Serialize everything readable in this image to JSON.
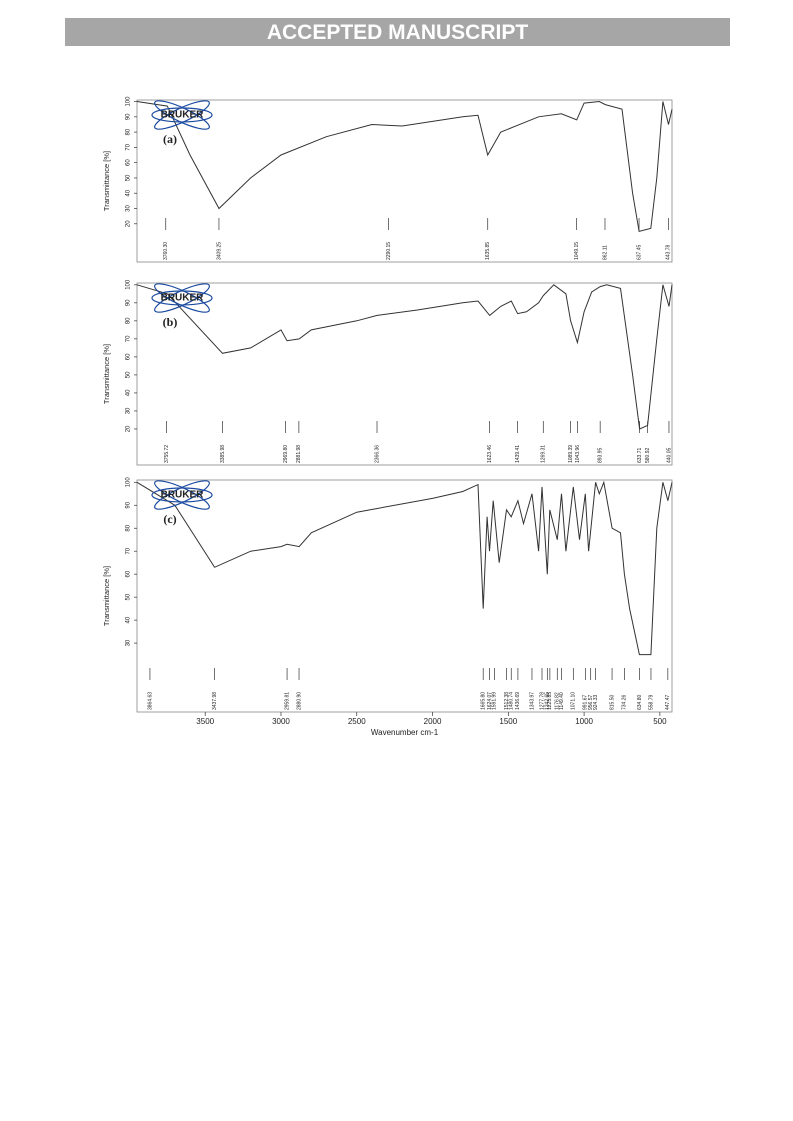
{
  "header": {
    "banner": "ACCEPTED MANUSCRIPT"
  },
  "chart_data": [
    {
      "type": "line",
      "label": "(a)",
      "logo": "BRUKER",
      "ylabel": "Transmittance [%]",
      "color": "#333333",
      "xlim": [
        3950,
        420
      ],
      "ylim": [
        -5,
        101
      ],
      "yticks": [
        20,
        30,
        40,
        50,
        60,
        70,
        80,
        90,
        100
      ],
      "x": [
        3950,
        3750,
        3600,
        3409,
        3200,
        3000,
        2700,
        2400,
        2200,
        1800,
        1700,
        1636,
        1550,
        1300,
        1150,
        1049,
        1000,
        900,
        860,
        750,
        680,
        637,
        560,
        520,
        480,
        443,
        420
      ],
      "values": [
        100,
        97,
        65,
        30,
        50,
        65,
        77,
        85,
        84,
        90,
        91,
        65,
        80,
        90,
        92,
        88,
        99,
        100,
        98,
        95,
        40,
        15,
        17,
        50,
        100,
        85,
        95
      ],
      "peaks": [
        {
          "value": 3760.3,
          "label": "3760.30"
        },
        {
          "value": 3409.25,
          "label": "3409.25"
        },
        {
          "value": 2290.15,
          "label": "2290.15"
        },
        {
          "value": 1635.85,
          "label": "1635.85"
        },
        {
          "value": 1049.15,
          "label": "1049.15"
        },
        {
          "value": 862.11,
          "label": "862.11"
        },
        {
          "value": 637.45,
          "label": "637.45"
        },
        {
          "value": 443.78,
          "label": "443.78"
        }
      ]
    },
    {
      "type": "line",
      "label": "(b)",
      "logo": "BRUKER",
      "ylabel": "Transmittance [%]",
      "color": "#333333",
      "xlim": [
        3950,
        420
      ],
      "ylim": [
        0,
        101
      ],
      "yticks": [
        20,
        30,
        40,
        50,
        60,
        70,
        80,
        90,
        100
      ],
      "x": [
        3950,
        3750,
        3386,
        3200,
        3000,
        2960,
        2880,
        2800,
        2500,
        2366,
        2100,
        1800,
        1700,
        1623,
        1550,
        1480,
        1439,
        1380,
        1300,
        1269,
        1200,
        1120,
        1089,
        1044,
        1000,
        950,
        894,
        850,
        760,
        680,
        634,
        581,
        520,
        480,
        440,
        420
      ],
      "values": [
        100,
        95,
        62,
        65,
        75,
        69,
        70,
        75,
        80,
        83,
        86,
        90,
        91,
        83,
        88,
        91,
        84,
        85,
        90,
        94,
        100,
        95,
        80,
        68,
        85,
        96,
        99,
        100,
        98,
        50,
        20,
        22,
        70,
        100,
        88,
        100
      ],
      "peaks": [
        {
          "value": 3755.72,
          "label": "3755.72"
        },
        {
          "value": 3385.98,
          "label": "3385.98"
        },
        {
          "value": 2969.8,
          "label": "2969.80"
        },
        {
          "value": 2881.98,
          "label": "2881.98"
        },
        {
          "value": 2366.36,
          "label": "2366.36"
        },
        {
          "value": 1623.46,
          "label": "1623.46"
        },
        {
          "value": 1439.41,
          "label": "1439.41"
        },
        {
          "value": 1269.31,
          "label": "1269.31"
        },
        {
          "value": 1089.39,
          "label": "1089.39"
        },
        {
          "value": 1043.96,
          "label": "1043.96"
        },
        {
          "value": 893.95,
          "label": "893.95"
        },
        {
          "value": 633.71,
          "label": "633.71"
        },
        {
          "value": 580.92,
          "label": "580.92"
        },
        {
          "value": 440.05,
          "label": "440.05"
        }
      ]
    },
    {
      "type": "line",
      "label": "(c)",
      "logo": "BRUKER",
      "ylabel": "Transmittance [%]",
      "xlabel": "Wavenumber cm-1",
      "color": "#333333",
      "xlim": [
        3950,
        420
      ],
      "ylim": [
        0,
        101
      ],
      "yticks": [
        30,
        40,
        50,
        60,
        70,
        80,
        90,
        100
      ],
      "xticks": [
        3500,
        3000,
        2500,
        2000,
        1500,
        1000,
        500
      ],
      "x": [
        3950,
        3700,
        3438,
        3200,
        3000,
        2960,
        2880,
        2800,
        2500,
        2000,
        1800,
        1700,
        1666,
        1640,
        1624,
        1600,
        1560,
        1512,
        1481,
        1437,
        1400,
        1344,
        1300,
        1278,
        1243,
        1226,
        1177,
        1149,
        1120,
        1071,
        1030,
        992,
        970,
        924,
        900,
        870,
        815,
        760,
        734,
        700,
        635,
        559,
        520,
        480,
        447,
        420
      ],
      "values": [
        100,
        90,
        63,
        70,
        72,
        73,
        72,
        78,
        87,
        93,
        96,
        99,
        45,
        85,
        70,
        92,
        65,
        88,
        85,
        92,
        82,
        95,
        70,
        98,
        60,
        88,
        75,
        95,
        70,
        98,
        75,
        95,
        70,
        100,
        95,
        100,
        80,
        78,
        60,
        45,
        25,
        25,
        80,
        100,
        92,
        100
      ],
      "peaks": [
        {
          "value": 3864.63,
          "label": "3864.63"
        },
        {
          "value": 3437.98,
          "label": "3437.98"
        },
        {
          "value": 2959.81,
          "label": "2959.81"
        },
        {
          "value": 2880.9,
          "label": "2880.90"
        },
        {
          "value": 1665.8,
          "label": "1665.80"
        },
        {
          "value": 1624.07,
          "label": "1624.07"
        },
        {
          "value": 1591.99,
          "label": "1591.99"
        },
        {
          "value": 1512.38,
          "label": "1512.38"
        },
        {
          "value": 1480.74,
          "label": "1480.74"
        },
        {
          "value": 1436.69,
          "label": "1436.69"
        },
        {
          "value": 1343.97,
          "label": "1343.97"
        },
        {
          "value": 1277.78,
          "label": "1277.78"
        },
        {
          "value": 1242.65,
          "label": "1242.65"
        },
        {
          "value": 1225.85,
          "label": "1225.85"
        },
        {
          "value": 1176.82,
          "label": "1176.82"
        },
        {
          "value": 1149.4,
          "label": "1149.40"
        },
        {
          "value": 1071.1,
          "label": "1071.10"
        },
        {
          "value": 991.67,
          "label": "991.67"
        },
        {
          "value": 956.57,
          "label": "956.57"
        },
        {
          "value": 924.33,
          "label": "924.33"
        },
        {
          "value": 815.5,
          "label": "815.50"
        },
        {
          "value": 734.26,
          "label": "734.26"
        },
        {
          "value": 634.8,
          "label": "634.80"
        },
        {
          "value": 558.79,
          "label": "558.79"
        },
        {
          "value": 447.47,
          "label": "447.47"
        }
      ]
    }
  ]
}
